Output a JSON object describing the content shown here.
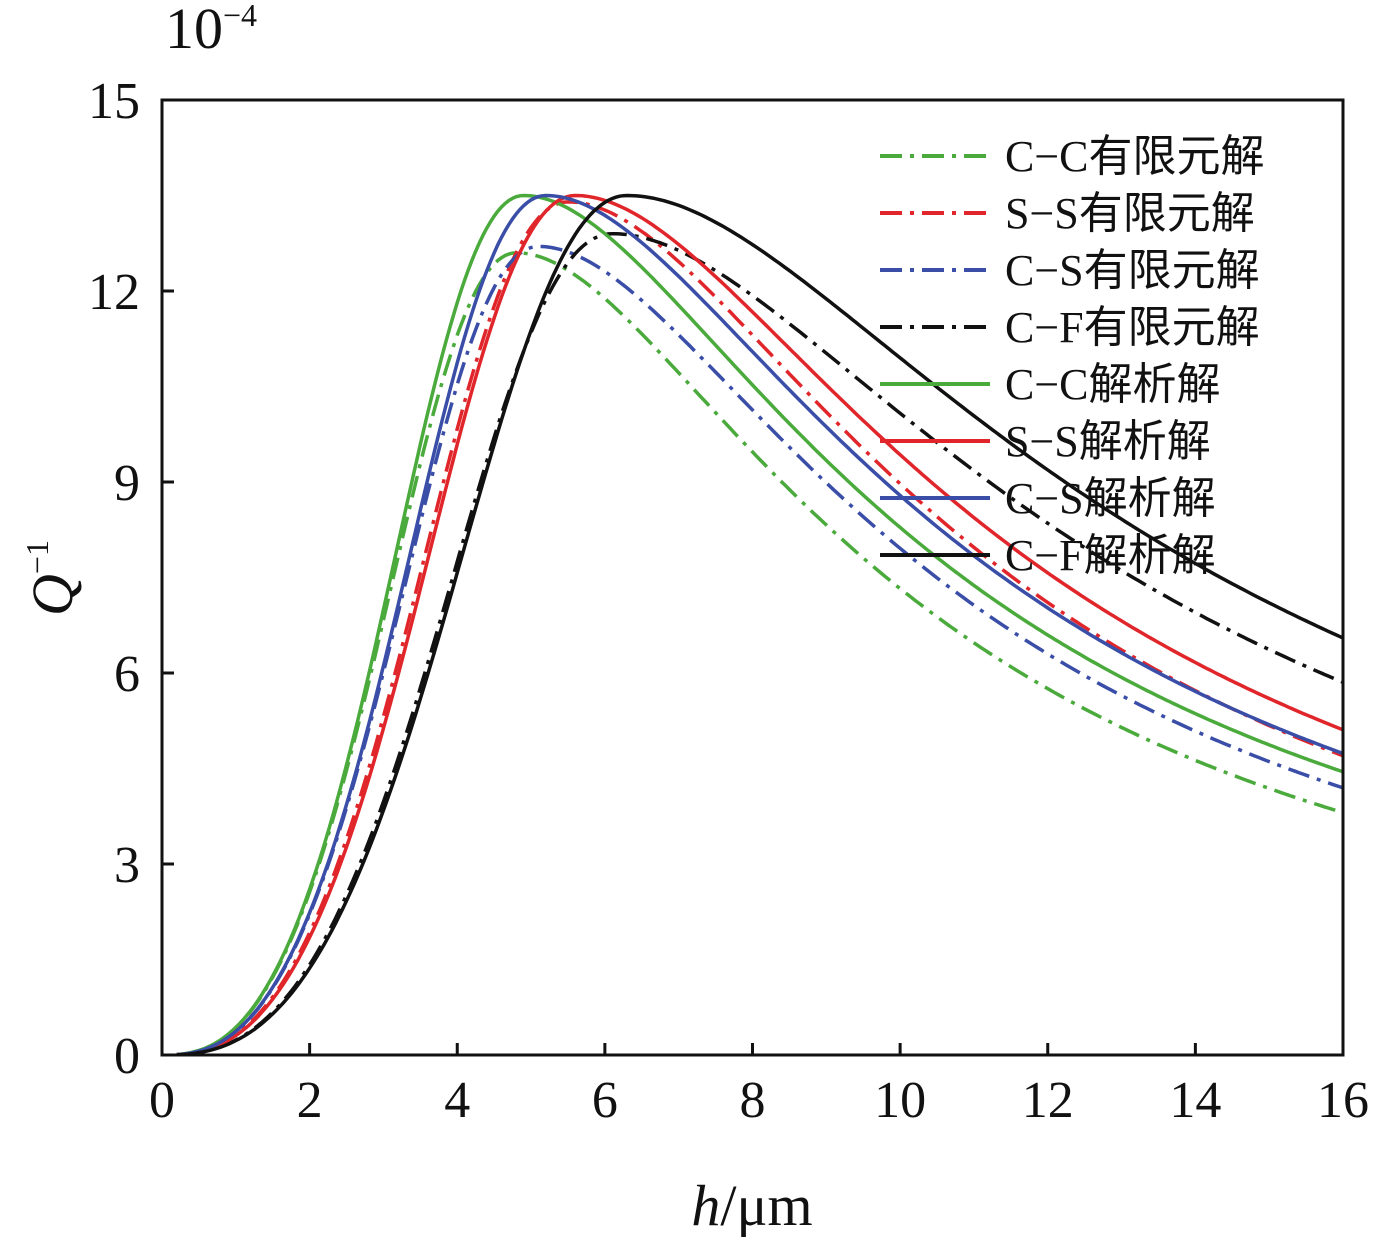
{
  "chart_data": {
    "type": "line",
    "exponent_label": "10",
    "exponent_power": "−4",
    "xlabel_italic": "h",
    "xlabel_unit": "/μm",
    "ylabel_italic": "Q",
    "ylabel_sup": "−1",
    "xlim": [
      0,
      16
    ],
    "ylim": [
      0,
      15
    ],
    "xticks": [
      "0",
      "2",
      "4",
      "6",
      "8",
      "10",
      "12",
      "14",
      "16"
    ],
    "yticks": [
      "0",
      "3",
      "6",
      "9",
      "12",
      "15"
    ],
    "grid": false,
    "legend_position": "top-right",
    "series": [
      {
        "name": "C−C有限元解",
        "color": "#4aaa3c",
        "dash": "dashdot",
        "peak_x": 4.8,
        "peak_y": 12.6,
        "k": 1.12,
        "tail": 1.55
      },
      {
        "name": "S−S有限元解",
        "color": "#e0262a",
        "dash": "dashdot",
        "peak_x": 5.5,
        "peak_y": 13.4,
        "k": 1.12,
        "tail": 1.6
      },
      {
        "name": "C−S有限元解",
        "color": "#3a4ea8",
        "dash": "dashdot",
        "peak_x": 5.1,
        "peak_y": 12.7,
        "k": 1.12,
        "tail": 1.55
      },
      {
        "name": "C−F有限元解",
        "color": "#111111",
        "dash": "dashdot",
        "peak_x": 6.1,
        "peak_y": 12.9,
        "k": 1.1,
        "tail": 1.48
      },
      {
        "name": "C−C解析解",
        "color": "#4aaa3c",
        "dash": "solid",
        "peak_x": 4.9,
        "peak_y": 13.5,
        "k": 1.1,
        "tail": 1.5
      },
      {
        "name": "S−S解析解",
        "color": "#e0262a",
        "dash": "solid",
        "peak_x": 5.6,
        "peak_y": 13.5,
        "k": 1.12,
        "tail": 1.55
      },
      {
        "name": "C−S解析解",
        "color": "#3a4ea8",
        "dash": "solid",
        "peak_x": 5.2,
        "peak_y": 13.5,
        "k": 1.1,
        "tail": 1.52
      },
      {
        "name": "C−F解析解",
        "color": "#111111",
        "dash": "solid",
        "peak_x": 6.3,
        "peak_y": 13.5,
        "k": 1.1,
        "tail": 1.45
      }
    ]
  }
}
